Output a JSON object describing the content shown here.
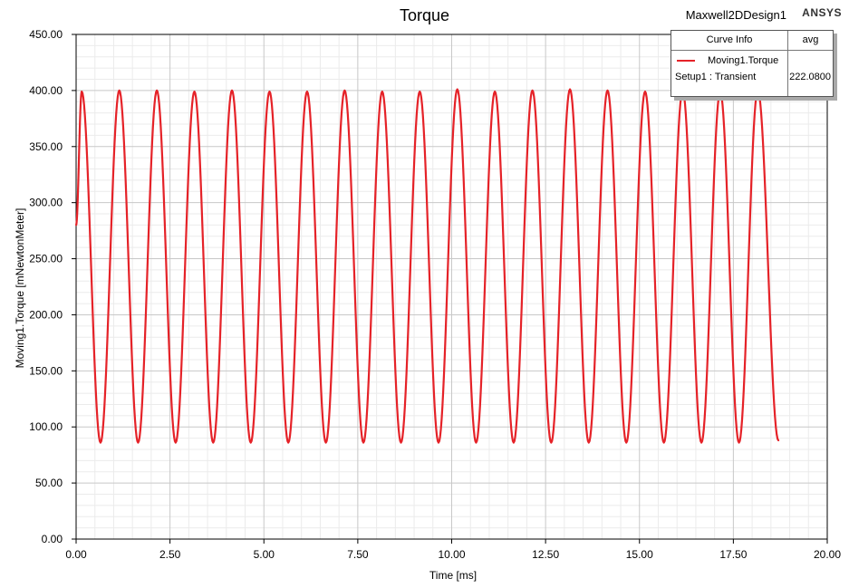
{
  "header": {
    "title": "Torque",
    "design_name": "Maxwell2DDesign1",
    "brand": "ANSYS"
  },
  "legend": {
    "header_curve": "Curve Info",
    "header_avg": "avg",
    "curve_name": "Moving1.Torque",
    "setup": "Setup1 : Transient",
    "avg_value": "222.0800"
  },
  "colors": {
    "series": "#e52228",
    "major_grid": "#c8c8c8",
    "minor_grid": "#ebebeb",
    "axis": "#000000"
  },
  "chart_data": {
    "type": "line",
    "title": "Torque",
    "xlabel": "Time [ms]",
    "ylabel": "Moving1.Torque [mNewtonMeter]",
    "xlim": [
      0,
      20
    ],
    "ylim": [
      0,
      450
    ],
    "x_ticks": [
      "0.00",
      "2.50",
      "5.00",
      "7.50",
      "10.00",
      "12.50",
      "15.00",
      "17.50",
      "20.00"
    ],
    "y_ticks": [
      "0.00",
      "50.00",
      "100.00",
      "150.00",
      "200.00",
      "250.00",
      "300.00",
      "350.00",
      "400.00",
      "450.00"
    ],
    "grid": true,
    "legend_position": "top-right",
    "series": [
      {
        "name": "Moving1.Torque",
        "setup": "Setup1 : Transient",
        "color": "#e52228",
        "avg": 222.08,
        "x": [
          0.0,
          0.15,
          0.65,
          1.15,
          1.65,
          2.15,
          2.65,
          3.15,
          3.65,
          4.15,
          4.65,
          5.15,
          5.65,
          6.15,
          6.65,
          7.15,
          7.65,
          8.15,
          8.65,
          9.15,
          9.65,
          10.15,
          10.65,
          11.15,
          11.65,
          12.15,
          12.65,
          13.15,
          13.65,
          14.15,
          14.65,
          15.15,
          15.65,
          16.15,
          16.65,
          17.15,
          17.65,
          18.15,
          18.7
        ],
        "y": [
          280,
          399,
          86,
          400,
          86,
          400,
          86,
          399,
          86,
          400,
          86,
          399,
          86,
          399,
          86,
          400,
          86,
          399,
          86,
          399,
          86,
          401,
          86,
          399,
          86,
          400,
          86,
          401,
          86,
          400,
          86,
          399,
          86,
          400,
          86,
          399,
          86,
          400,
          88
        ]
      }
    ]
  }
}
